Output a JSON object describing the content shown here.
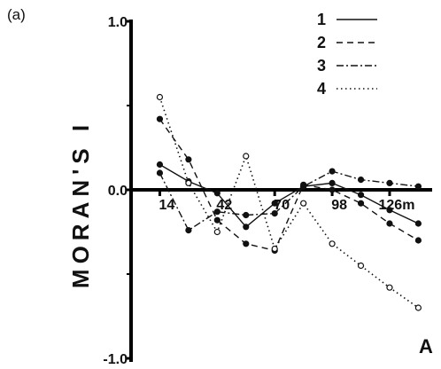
{
  "panel_label": "(a)",
  "corner_label": "A",
  "chart_data": {
    "type": "line",
    "ylabel": "MORAN'S I",
    "ylim": [
      -1.0,
      1.0
    ],
    "y_tick_labels": [
      "1.0",
      "0.0",
      "-1.0"
    ],
    "x_tick_labels": [
      "14",
      "42",
      "70",
      "98",
      "126m"
    ],
    "x_ticks": [
      14,
      42,
      70,
      98,
      126
    ],
    "xlim": [
      0,
      145
    ],
    "legend_position": "top-right",
    "series": [
      {
        "name": "1",
        "dash": "solid",
        "marker": "filled",
        "x": [
          14,
          28,
          42,
          56,
          70,
          84,
          98,
          112,
          126,
          140
        ],
        "y": [
          0.15,
          0.05,
          -0.02,
          -0.22,
          -0.08,
          0.02,
          0.04,
          -0.03,
          -0.12,
          -0.2
        ]
      },
      {
        "name": "2",
        "dash": "dashed",
        "marker": "filled",
        "x": [
          14,
          28,
          42,
          56,
          70,
          84,
          98,
          112,
          126,
          140
        ],
        "y": [
          0.42,
          0.18,
          -0.18,
          -0.32,
          -0.36,
          0.03,
          0.0,
          -0.08,
          -0.2,
          -0.3
        ]
      },
      {
        "name": "3",
        "dash": "dashdot",
        "marker": "filled",
        "x": [
          14,
          28,
          42,
          56,
          70,
          84,
          98,
          112,
          126,
          140
        ],
        "y": [
          0.1,
          -0.24,
          -0.13,
          -0.15,
          -0.14,
          0.02,
          0.11,
          0.06,
          0.04,
          0.02
        ]
      },
      {
        "name": "4",
        "dash": "dotted",
        "marker": "open",
        "x": [
          14,
          28,
          42,
          56,
          70,
          84,
          98,
          112,
          126,
          140
        ],
        "y": [
          0.55,
          0.04,
          -0.25,
          0.2,
          -0.35,
          -0.08,
          -0.32,
          -0.45,
          -0.58,
          -0.7
        ]
      }
    ]
  }
}
